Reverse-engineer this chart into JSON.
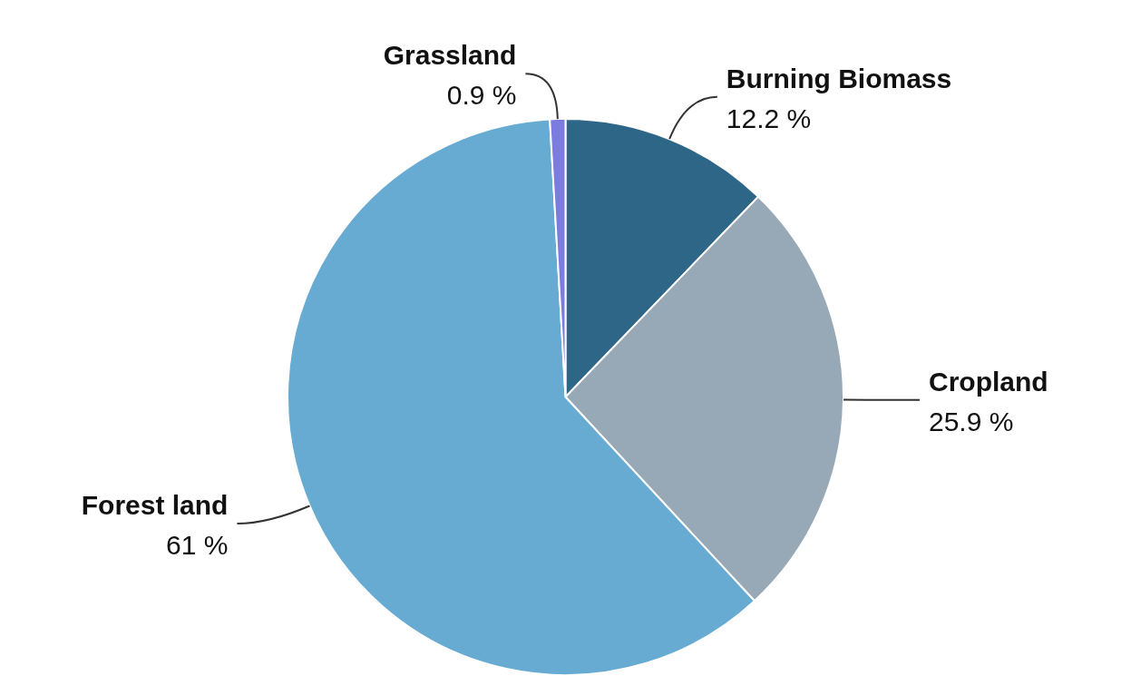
{
  "chart_data": {
    "type": "pie",
    "categories": [
      "Burning Biomass",
      "Cropland",
      "Forest land",
      "Grassland"
    ],
    "values": [
      12.2,
      25.9,
      61,
      0.9
    ],
    "colors": [
      "#2e6688",
      "#97a9b6",
      "#67abd3",
      "#7b7be0"
    ],
    "value_labels": [
      "12.2 %",
      "25.9 %",
      "61 %",
      "0.9 %"
    ],
    "legend": false
  }
}
